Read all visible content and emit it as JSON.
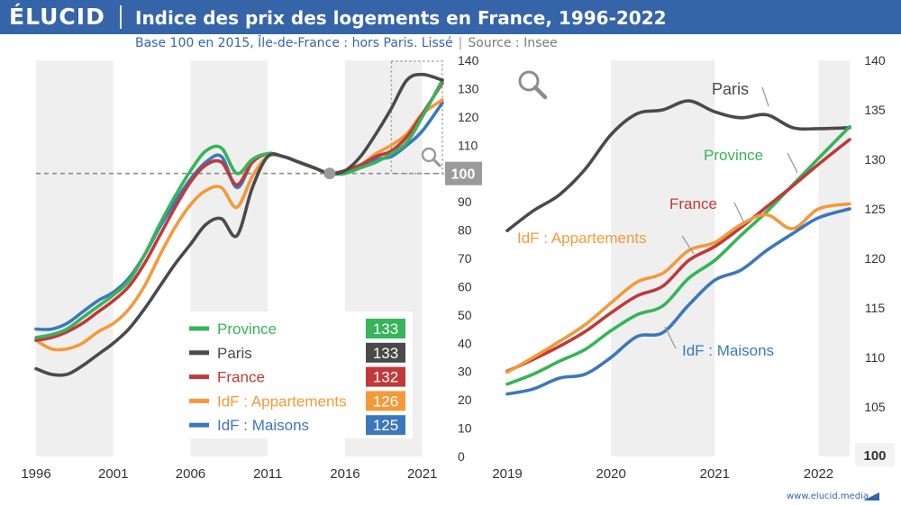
{
  "header": {
    "logo": "ÉLUCID",
    "title": "Indice des prix des logements en France, 1996-2022"
  },
  "subtitle": {
    "text": "Base 100 en 2015, Île-de-France : hors Paris. Lissé",
    "source": "Source : Insee"
  },
  "footer": {
    "text": "www.elucid.media"
  },
  "colors": {
    "Province": "#36b45a",
    "Paris": "#4a4a4a",
    "France": "#c0393b",
    "IdF : Appartements": "#f39a3a",
    "IdF : Maisons": "#3c77bd",
    "header": "#3565a8",
    "band": "#efefef"
  },
  "chart_data": [
    {
      "type": "line",
      "grid": false,
      "legend_position": "bottom-right",
      "xlim": [
        1996,
        2022.3
      ],
      "ylim": [
        0,
        140
      ],
      "x_ticks": [
        "1996",
        "2001",
        "2006",
        "2011",
        "2016",
        "2021"
      ],
      "y_ticks": [
        "0",
        "10",
        "20",
        "30",
        "40",
        "50",
        "60",
        "70",
        "80",
        "90",
        "100",
        "110",
        "120",
        "130",
        "140"
      ],
      "reference_value": 100,
      "reference_label": "100",
      "legend": [
        {
          "name": "Province",
          "value": "133"
        },
        {
          "name": "Paris",
          "value": "133"
        },
        {
          "name": "France",
          "value": "132"
        },
        {
          "name": "IdF : Appartements",
          "value": "126"
        },
        {
          "name": "IdF : Maisons",
          "value": "125"
        }
      ],
      "series": [
        {
          "name": "IdF : Maisons",
          "x": [
            1996,
            1997,
            1998,
            1999,
            2000,
            2001,
            2002,
            2003,
            2004,
            2005,
            2006,
            2007,
            2008,
            2009,
            2010,
            2011,
            2012,
            2013,
            2014,
            2015,
            2016,
            2017,
            2018,
            2019,
            2020,
            2021,
            2022.3
          ],
          "y": [
            45,
            45,
            47,
            51,
            55,
            58,
            63,
            71,
            81,
            90,
            98,
            104,
            106,
            95,
            104,
            107,
            106,
            104,
            102,
            100,
            101,
            103,
            105,
            106,
            110,
            115,
            125
          ]
        },
        {
          "name": "IdF : Appartements",
          "x": [
            1996,
            1997,
            1998,
            1999,
            2000,
            2001,
            2002,
            2003,
            2004,
            2005,
            2006,
            2007,
            2008,
            2009,
            2010,
            2011,
            2012,
            2013,
            2014,
            2015,
            2016,
            2017,
            2018,
            2019,
            2020,
            2021,
            2022.3
          ],
          "y": [
            41,
            38,
            38,
            40,
            44,
            47,
            52,
            60,
            71,
            81,
            89,
            94,
            95,
            88,
            99,
            106,
            106,
            104,
            102,
            100,
            101,
            103,
            107,
            110,
            114,
            121,
            126
          ]
        },
        {
          "name": "France",
          "x": [
            1996,
            1997,
            1998,
            1999,
            2000,
            2001,
            2002,
            2003,
            2004,
            2005,
            2006,
            2007,
            2008,
            2009,
            2010,
            2011,
            2012,
            2013,
            2014,
            2015,
            2016,
            2017,
            2018,
            2019,
            2020,
            2021,
            2022.3
          ],
          "y": [
            41,
            42,
            44,
            47,
            51,
            55,
            60,
            68,
            78,
            88,
            97,
            103,
            104,
            96,
            104,
            107,
            106,
            104,
            102,
            100,
            101,
            103,
            106,
            108,
            113,
            121,
            132
          ]
        },
        {
          "name": "Province",
          "x": [
            1996,
            1997,
            1998,
            1999,
            2000,
            2001,
            2002,
            2003,
            2004,
            2005,
            2006,
            2007,
            2008,
            2009,
            2010,
            2011,
            2012,
            2013,
            2014,
            2015,
            2016,
            2017,
            2018,
            2019,
            2020,
            2021,
            2022.3
          ],
          "y": [
            42,
            43,
            45,
            49,
            53,
            57,
            62,
            71,
            82,
            92,
            101,
            108,
            109,
            100,
            105,
            107,
            106,
            104,
            102,
            100,
            100,
            102,
            104,
            107,
            111,
            120,
            133
          ]
        },
        {
          "name": "Paris",
          "x": [
            1996,
            1997,
            1998,
            1999,
            2000,
            2001,
            2002,
            2003,
            2004,
            2005,
            2006,
            2007,
            2008,
            2009,
            2010,
            2011,
            2012,
            2013,
            2014,
            2015,
            2016,
            2017,
            2018,
            2019,
            2020,
            2021,
            2022.3
          ],
          "y": [
            31,
            29,
            29,
            32,
            36,
            40,
            45,
            52,
            60,
            68,
            75,
            82,
            84,
            78,
            95,
            106,
            106,
            104,
            102,
            100,
            101,
            106,
            114,
            123,
            133,
            135,
            133
          ]
        }
      ]
    },
    {
      "type": "line",
      "grid": false,
      "xlim": [
        2019,
        2022.3
      ],
      "ylim": [
        100,
        140
      ],
      "x_ticks": [
        "2019",
        "2020",
        "2021",
        "2022"
      ],
      "y_ticks": [
        "100",
        "105",
        "110",
        "115",
        "120",
        "125",
        "130",
        "135",
        "140"
      ],
      "series": [
        {
          "name": "Paris",
          "label": "Paris",
          "x": [
            2019,
            2019.25,
            2019.5,
            2019.75,
            2020,
            2020.25,
            2020.5,
            2020.75,
            2021,
            2021.25,
            2021.5,
            2021.75,
            2022,
            2022.3
          ],
          "y": [
            122.8,
            124.8,
            126.4,
            129,
            132.5,
            134.6,
            135,
            135.9,
            134.8,
            134.2,
            134.5,
            133.2,
            133.1,
            133.2
          ]
        },
        {
          "name": "Province",
          "label": "Province",
          "x": [
            2019,
            2019.25,
            2019.5,
            2019.75,
            2020,
            2020.25,
            2020.5,
            2020.75,
            2021,
            2021.25,
            2021.5,
            2021.75,
            2022,
            2022.3
          ],
          "y": [
            107.3,
            108.3,
            109.6,
            110.8,
            112.7,
            114.3,
            115.2,
            118,
            119.8,
            122.3,
            124.7,
            127.4,
            130.1,
            133.3
          ]
        },
        {
          "name": "France",
          "label": "France",
          "x": [
            2019,
            2019.25,
            2019.5,
            2019.75,
            2020,
            2020.25,
            2020.5,
            2020.75,
            2021,
            2021.25,
            2021.5,
            2021.75,
            2022,
            2022.3
          ],
          "y": [
            108.6,
            109.8,
            111.1,
            112.6,
            114.5,
            116.2,
            117.2,
            119.8,
            121.2,
            123.1,
            125.2,
            127.3,
            129.5,
            132
          ]
        },
        {
          "name": "IdF : Appartements",
          "label": "IdF : Appartements",
          "x": [
            2019,
            2019.25,
            2019.5,
            2019.75,
            2020,
            2020.25,
            2020.5,
            2020.75,
            2021,
            2021.25,
            2021.5,
            2021.75,
            2022,
            2022.3
          ],
          "y": [
            108.5,
            110,
            111.6,
            113.3,
            115.5,
            117.6,
            118.5,
            120.8,
            121.6,
            123.4,
            124.4,
            123,
            125,
            125.5
          ]
        },
        {
          "name": "IdF : Maisons",
          "label": "IdF : Maisons",
          "x": [
            2019,
            2019.25,
            2019.5,
            2019.75,
            2020,
            2020.25,
            2020.5,
            2020.75,
            2021,
            2021.25,
            2021.5,
            2021.75,
            2022,
            2022.3
          ],
          "y": [
            106.3,
            106.8,
            107.9,
            108.3,
            110,
            112.1,
            112.5,
            115.3,
            117.8,
            118.8,
            120.8,
            122.5,
            124.1,
            125
          ]
        }
      ]
    }
  ]
}
